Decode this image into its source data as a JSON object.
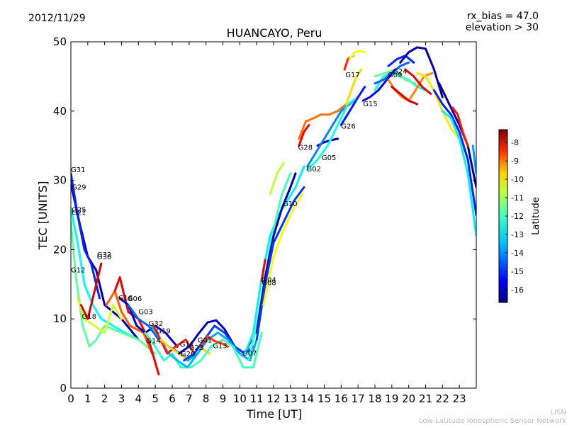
{
  "chart_data": {
    "type": "line",
    "title": "HUANCAYO, Peru",
    "date": "2012/11/29",
    "annotations": [
      "rx_bias = 47.0",
      "elevation > 30"
    ],
    "xlabel": "Time [UT]",
    "ylabel": "TEC [UNITS]",
    "xlim": [
      0,
      24
    ],
    "ylim": [
      0,
      50
    ],
    "xticks": [
      "0",
      "1",
      "2",
      "3",
      "4",
      "5",
      "6",
      "7",
      "8",
      "9",
      "10",
      "11",
      "12",
      "13",
      "14",
      "15",
      "16",
      "17",
      "18",
      "19",
      "20",
      "21",
      "22",
      "23"
    ],
    "yticks": [
      "0",
      "10",
      "20",
      "30",
      "40",
      "50"
    ],
    "colorbar": {
      "label": "Latitude",
      "range": [
        -16.7,
        -7.3
      ],
      "ticks": [
        "-8",
        "-9",
        "-10",
        "-11",
        "-12",
        "-13",
        "-14",
        "-15",
        "-16"
      ],
      "colors": [
        "#00007f",
        "#0000ff",
        "#0080ff",
        "#00ffff",
        "#80ff80",
        "#ffff00",
        "#ff8000",
        "#ff0000",
        "#7f0000"
      ]
    },
    "satellite_labels": [
      {
        "name": "G31",
        "x": 0.0,
        "y": 31.2
      },
      {
        "name": "G29",
        "x": 0.05,
        "y": 28.7
      },
      {
        "name": "G25",
        "x": 0.05,
        "y": 25.4
      },
      {
        "name": "G21",
        "x": 0.05,
        "y": 25.0
      },
      {
        "name": "G12",
        "x": 0.0,
        "y": 16.7
      },
      {
        "name": "G32",
        "x": 1.55,
        "y": 18.9
      },
      {
        "name": "G30",
        "x": 1.55,
        "y": 18.6
      },
      {
        "name": "G18",
        "x": 0.65,
        "y": 10.0
      },
      {
        "name": "G16",
        "x": 2.8,
        "y": 12.7
      },
      {
        "name": "G06",
        "x": 3.35,
        "y": 12.6
      },
      {
        "name": "G03",
        "x": 4.0,
        "y": 10.7
      },
      {
        "name": "G32",
        "x": 4.6,
        "y": 9.0
      },
      {
        "name": "G19",
        "x": 5.05,
        "y": 7.9
      },
      {
        "name": "G14",
        "x": 4.45,
        "y": 6.5
      },
      {
        "name": "G11",
        "x": 6.45,
        "y": 6.0
      },
      {
        "name": "G01",
        "x": 7.5,
        "y": 6.6
      },
      {
        "name": "G23",
        "x": 7.0,
        "y": 5.5
      },
      {
        "name": "G20",
        "x": 6.5,
        "y": 4.6
      },
      {
        "name": "G13",
        "x": 8.4,
        "y": 5.8
      },
      {
        "name": "G07",
        "x": 10.15,
        "y": 4.7
      },
      {
        "name": "G04",
        "x": 11.3,
        "y": 15.3
      },
      {
        "name": "G08",
        "x": 11.3,
        "y": 14.9
      },
      {
        "name": "G10",
        "x": 12.55,
        "y": 26.3
      },
      {
        "name": "G28",
        "x": 13.45,
        "y": 34.4
      },
      {
        "name": "G05",
        "x": 14.85,
        "y": 32.9
      },
      {
        "name": "G02",
        "x": 13.95,
        "y": 31.3
      },
      {
        "name": "G26",
        "x": 16.0,
        "y": 37.5
      },
      {
        "name": "G17",
        "x": 16.25,
        "y": 44.9
      },
      {
        "name": "G15",
        "x": 17.3,
        "y": 40.7
      },
      {
        "name": "G09",
        "x": 18.75,
        "y": 44.9
      },
      {
        "name": "G24",
        "x": 19.05,
        "y": 45.4
      }
    ],
    "series": [
      {
        "name": "track-01",
        "lat": -16.3,
        "x": [
          0,
          0.5,
          1,
          1.5,
          2,
          3,
          4
        ],
        "y": [
          29.5,
          24,
          19,
          17,
          12,
          10,
          7
        ]
      },
      {
        "name": "track-02",
        "lat": -15.2,
        "x": [
          0,
          0.4,
          0.8,
          1.2,
          1.7
        ],
        "y": [
          31,
          25,
          20,
          18,
          13
        ]
      },
      {
        "name": "track-03",
        "lat": -13.2,
        "x": [
          0,
          0.4,
          0.8,
          1.3,
          1.8,
          2.5,
          3.2,
          4
        ],
        "y": [
          26,
          21,
          15,
          12,
          10,
          9,
          8,
          7
        ]
      },
      {
        "name": "track-04",
        "lat": -12.3,
        "x": [
          0,
          0.3,
          0.7,
          1.1,
          1.5,
          2,
          3,
          4,
          5
        ],
        "y": [
          24,
          16,
          9,
          6,
          7,
          9,
          8,
          7,
          5
        ]
      },
      {
        "name": "track-05",
        "lat": -11.2,
        "x": [
          0.4,
          0.8,
          1.4,
          2,
          2.5,
          3
        ],
        "y": [
          13,
          10,
          9,
          8,
          12,
          10
        ]
      },
      {
        "name": "track-06",
        "lat": -8.2,
        "x": [
          0.6,
          1,
          1.5,
          1.8
        ],
        "y": [
          12,
          10,
          15,
          18
        ]
      },
      {
        "name": "track-07",
        "lat": -9.3,
        "x": [
          2.1,
          2.6,
          3,
          3.5,
          4.3,
          4.8
        ],
        "y": [
          12,
          14,
          11,
          9,
          8,
          5
        ]
      },
      {
        "name": "track-08",
        "lat": -8.3,
        "x": [
          2.6,
          2.9,
          3.4,
          4,
          4.6,
          5.2
        ],
        "y": [
          14,
          16,
          11,
          10,
          7,
          2
        ]
      },
      {
        "name": "track-09",
        "lat": -16.0,
        "x": [
          2.9,
          3.4,
          3.9,
          4.4,
          5,
          5.6,
          6.3
        ],
        "y": [
          13,
          12,
          9,
          8,
          9,
          8,
          6
        ]
      },
      {
        "name": "track-10",
        "lat": -14.6,
        "x": [
          3.4,
          4,
          4.6,
          5.2,
          5.8,
          6.5,
          7
        ],
        "y": [
          12,
          10,
          9,
          7,
          6,
          5,
          4
        ]
      },
      {
        "name": "track-11",
        "lat": -12.7,
        "x": [
          4.4,
          5,
          5.5,
          6,
          6.5,
          7
        ],
        "y": [
          8,
          6,
          4,
          5,
          3,
          3
        ]
      },
      {
        "name": "track-12",
        "lat": -13.8,
        "x": [
          4.8,
          5.3,
          5.8,
          6.3,
          6.9,
          7.5
        ],
        "y": [
          9,
          7,
          5,
          4,
          3,
          5
        ]
      },
      {
        "name": "track-13",
        "lat": -8.7,
        "x": [
          4.9,
          5.3,
          5.7,
          6.2,
          6.8,
          7.3
        ],
        "y": [
          9,
          7,
          5,
          6,
          7,
          5
        ]
      },
      {
        "name": "track-14",
        "lat": -10.4,
        "x": [
          5.3,
          5.8,
          6.4,
          7,
          7.6,
          8.2
        ],
        "y": [
          7,
          6,
          5,
          4,
          6,
          5
        ]
      },
      {
        "name": "track-15",
        "lat": -16.2,
        "x": [
          6.4,
          7,
          7.6,
          8.1,
          8.6,
          9.1,
          9.7,
          10.3,
          10.7
        ],
        "y": [
          5,
          6,
          8,
          9.5,
          9.8,
          8.5,
          6,
          5,
          7
        ]
      },
      {
        "name": "track-16",
        "lat": -15.0,
        "x": [
          6.7,
          7.3,
          7.9,
          8.5,
          9.1,
          9.7,
          10.3,
          10.8
        ],
        "y": [
          4,
          5,
          7,
          9,
          8,
          6,
          5,
          6
        ]
      },
      {
        "name": "track-17",
        "lat": -14.0,
        "x": [
          6.9,
          7.5,
          8.1,
          8.7,
          9.3,
          10,
          10.6,
          11
        ],
        "y": [
          4,
          5,
          7,
          8,
          7,
          5,
          4,
          7
        ]
      },
      {
        "name": "track-18",
        "lat": -12.6,
        "x": [
          7.1,
          7.7,
          8.3,
          9,
          9.6,
          10.2,
          10.8,
          11.3
        ],
        "y": [
          3,
          4,
          6,
          7,
          6,
          3,
          3,
          8
        ]
      },
      {
        "name": "track-19",
        "lat": -9.0,
        "x": [
          7.7,
          8.1,
          8.5,
          8.9,
          9.3
        ],
        "y": [
          6,
          7.5,
          6.8,
          6.5,
          6
        ]
      },
      {
        "name": "track-20",
        "lat": -13.3,
        "x": [
          10.3,
          10.8,
          11.3,
          11.8,
          12.3,
          12.8,
          13.3,
          13.8
        ],
        "y": [
          5,
          8,
          16,
          22,
          25,
          27,
          29,
          32
        ]
      },
      {
        "name": "track-21",
        "lat": -12.6,
        "x": [
          10.5,
          11,
          11.5,
          12,
          12.5,
          13
        ],
        "y": [
          4,
          9,
          16,
          23,
          28,
          31
        ]
      },
      {
        "name": "track-22",
        "lat": -16.3,
        "x": [
          11,
          11.5,
          12,
          12.5,
          13,
          13.3
        ],
        "y": [
          8,
          16,
          22,
          26,
          29,
          31
        ]
      },
      {
        "name": "track-23",
        "lat": -15.0,
        "x": [
          11,
          11.5,
          12,
          12.6,
          13.2,
          13.8
        ],
        "y": [
          7,
          15,
          21,
          24,
          27,
          29
        ]
      },
      {
        "name": "track-24",
        "lat": -10.8,
        "x": [
          11.4,
          12,
          12.6,
          13.2,
          13.7
        ],
        "y": [
          12,
          19,
          23,
          26,
          28
        ]
      },
      {
        "name": "track-25",
        "lat": -11.4,
        "x": [
          11.8,
          12.2,
          12.6
        ],
        "y": [
          28,
          31,
          32.5
        ]
      },
      {
        "name": "track-26",
        "lat": -8.4,
        "x": [
          11.3,
          11.5
        ],
        "y": [
          15.5,
          18.5
        ]
      },
      {
        "name": "track-27",
        "lat": -9.5,
        "x": [
          13.5,
          13.9,
          14.4,
          14.8,
          15.3,
          15.8,
          16.3
        ],
        "y": [
          36,
          38.5,
          39,
          39.5,
          39.5,
          40,
          41
        ]
      },
      {
        "name": "track-28",
        "lat": -8.3,
        "x": [
          13.5,
          13.8,
          14.1
        ],
        "y": [
          35,
          37,
          38
        ]
      },
      {
        "name": "track-29",
        "lat": -16.2,
        "x": [
          14.6,
          15,
          15.4,
          15.8
        ],
        "y": [
          35,
          35.5,
          35.8,
          36
        ]
      },
      {
        "name": "track-30",
        "lat": -14.3,
        "x": [
          14,
          14.5,
          15,
          15.5,
          16,
          16.5,
          17
        ],
        "y": [
          32,
          34,
          36,
          38,
          40,
          41,
          42
        ]
      },
      {
        "name": "track-31",
        "lat": -13.0,
        "x": [
          14,
          14.6,
          15.2,
          15.8,
          16.4,
          17
        ],
        "y": [
          31.5,
          33,
          35,
          38,
          41,
          42
        ]
      },
      {
        "name": "track-32",
        "lat": -15.3,
        "x": [
          16,
          16.5,
          17,
          17.4
        ],
        "y": [
          38,
          40,
          42,
          43.5
        ]
      },
      {
        "name": "track-33",
        "lat": -10.5,
        "x": [
          16.3,
          16.6,
          16.9,
          17.2
        ],
        "y": [
          41,
          43,
          45,
          46
        ]
      },
      {
        "name": "track-34",
        "lat": -8.8,
        "x": [
          16.2,
          16.4,
          16.7
        ],
        "y": [
          46,
          47.5,
          48
        ]
      },
      {
        "name": "track-35",
        "lat": -10.9,
        "x": [
          16.5,
          16.8,
          17.1,
          17.4
        ],
        "y": [
          47.5,
          48.5,
          48.7,
          48.5
        ]
      },
      {
        "name": "track-36",
        "lat": -13.0,
        "x": [
          18,
          18.5,
          19,
          19.5,
          20,
          20.5,
          21
        ],
        "y": [
          43,
          45,
          45.5,
          45,
          44.5,
          43.5,
          43
        ]
      },
      {
        "name": "track-37",
        "lat": -12.2,
        "x": [
          18,
          18.6,
          19.2,
          19.8,
          20.4
        ],
        "y": [
          45,
          45.5,
          46,
          44.5,
          44
        ]
      },
      {
        "name": "track-38",
        "lat": -14.6,
        "x": [
          18,
          18.5,
          19,
          19.5,
          20
        ],
        "y": [
          44,
          44.5,
          45.5,
          46.5,
          47
        ]
      },
      {
        "name": "track-39",
        "lat": -15.6,
        "x": [
          17.3,
          17.7,
          18.2,
          18.7,
          19.2
        ],
        "y": [
          41.5,
          42,
          43,
          44.5,
          46
        ]
      },
      {
        "name": "track-40",
        "lat": -15.2,
        "x": [
          18.8,
          19.3,
          19.8,
          20.3
        ],
        "y": [
          46.5,
          47.5,
          48,
          47
        ]
      },
      {
        "name": "track-41",
        "lat": -16.4,
        "x": [
          19.5,
          20,
          20.5,
          21,
          21.5,
          22
        ],
        "y": [
          47,
          48.5,
          49.2,
          49,
          46,
          42
        ]
      },
      {
        "name": "track-42",
        "lat": -9.7,
        "x": [
          18.8,
          19.2,
          19.6,
          20,
          20.4,
          20.9,
          21.4
        ],
        "y": [
          44.5,
          43,
          42,
          41.5,
          43,
          45,
          45.5
        ]
      },
      {
        "name": "track-43",
        "lat": -8.0,
        "x": [
          19,
          19.5,
          20,
          20.5
        ],
        "y": [
          43.5,
          42.5,
          41.5,
          41
        ]
      },
      {
        "name": "track-44",
        "lat": -8.3,
        "x": [
          19.8,
          20.3,
          20.8,
          21.3
        ],
        "y": [
          46,
          45,
          43.5,
          42.5
        ]
      },
      {
        "name": "track-45",
        "lat": -10.6,
        "x": [
          20.5,
          21,
          21.5,
          22,
          22.5,
          23,
          23.5
        ],
        "y": [
          45.5,
          45,
          43,
          40,
          37.5,
          36,
          33
        ]
      },
      {
        "name": "track-46",
        "lat": -16.4,
        "x": [
          21.8,
          22.2,
          22.6,
          23,
          23.5,
          24
        ],
        "y": [
          44,
          42,
          40,
          38,
          35,
          29
        ]
      },
      {
        "name": "track-47",
        "lat": -15.2,
        "x": [
          21.5,
          22,
          22.5,
          23,
          23.5,
          24
        ],
        "y": [
          43,
          41,
          39.5,
          37,
          33,
          25
        ]
      },
      {
        "name": "track-48",
        "lat": -13.3,
        "x": [
          22,
          22.5,
          23,
          23.5,
          24
        ],
        "y": [
          40,
          39,
          36,
          31,
          22
        ]
      },
      {
        "name": "track-49",
        "lat": -8.7,
        "x": [
          22.6,
          22.9,
          23.2,
          23.5
        ],
        "y": [
          40.5,
          39.5,
          37,
          35
        ]
      },
      {
        "name": "track-50",
        "lat": -14.1,
        "x": [
          23.8,
          24
        ],
        "y": [
          35,
          31
        ]
      }
    ]
  },
  "footer": {
    "line1": "LISN",
    "line2": "Low-Latitude Ionospheric Sensor Network"
  }
}
